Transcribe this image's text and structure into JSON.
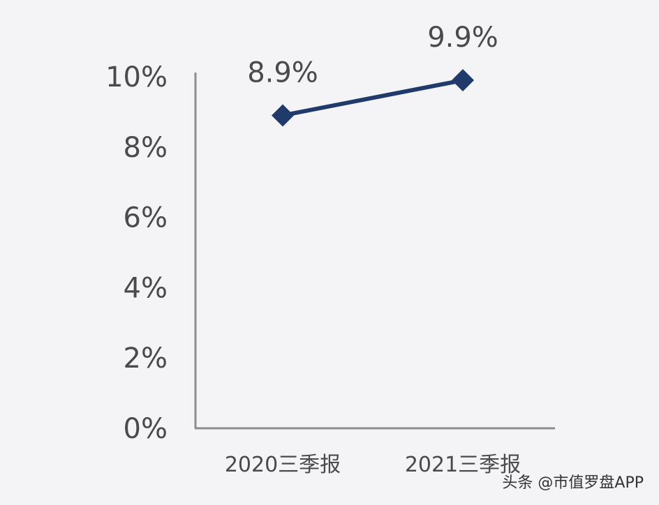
{
  "chart_data": {
    "type": "line",
    "categories": [
      "2020三季报",
      "2021三季报"
    ],
    "values": [
      8.9,
      9.9
    ],
    "data_labels": [
      "8.9%",
      "9.9%"
    ],
    "y_ticks": [
      "0%",
      "2%",
      "4%",
      "6%",
      "8%",
      "10%"
    ],
    "y_tick_values": [
      0,
      2,
      4,
      6,
      8,
      10
    ],
    "ylim": [
      0,
      10
    ],
    "y_unit": "%",
    "grid": false,
    "legend": "none",
    "colors": {
      "line": "#1f3a6b",
      "axis": "#8c8c8c",
      "background": "#f4f4f6"
    }
  },
  "watermark": "头条 @市值罗盘APP"
}
